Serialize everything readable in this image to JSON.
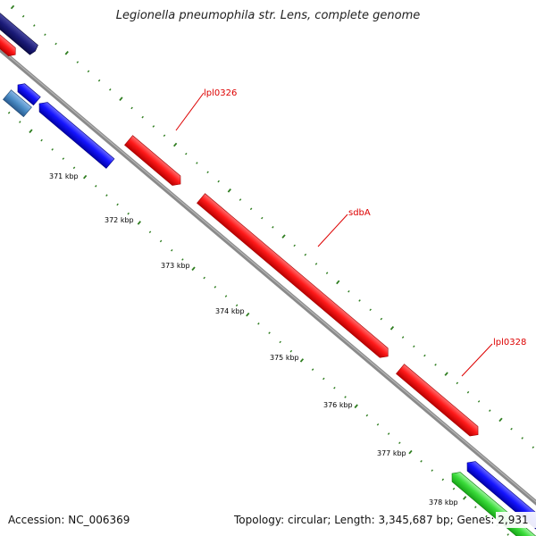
{
  "title": "Legionella pneumophila str. Lens, complete genome",
  "accession": "Accession: NC_006369",
  "summary": "Topology: circular; Length: 3,345,687 bp; Genes: 2,931",
  "scale_labels": [
    "371 kbp",
    "372 kbp",
    "373 kbp",
    "374 kbp",
    "375 kbp",
    "376 kbp",
    "377 kbp",
    "378 kbp"
  ],
  "gene_labels": [
    "lpl0326",
    "sdbA",
    "lpl0328"
  ],
  "colors": {
    "backbone": "#8a8a8a",
    "forward_gene": "#ff1e1e",
    "reverse_gene": "#1a1aff",
    "rna_gene": "#33dd33",
    "dark_gene": "#1a1a7a",
    "steel_gene": "#4a8cc6",
    "tick": "#2e7d1f",
    "gene_label": "#dd0000"
  }
}
